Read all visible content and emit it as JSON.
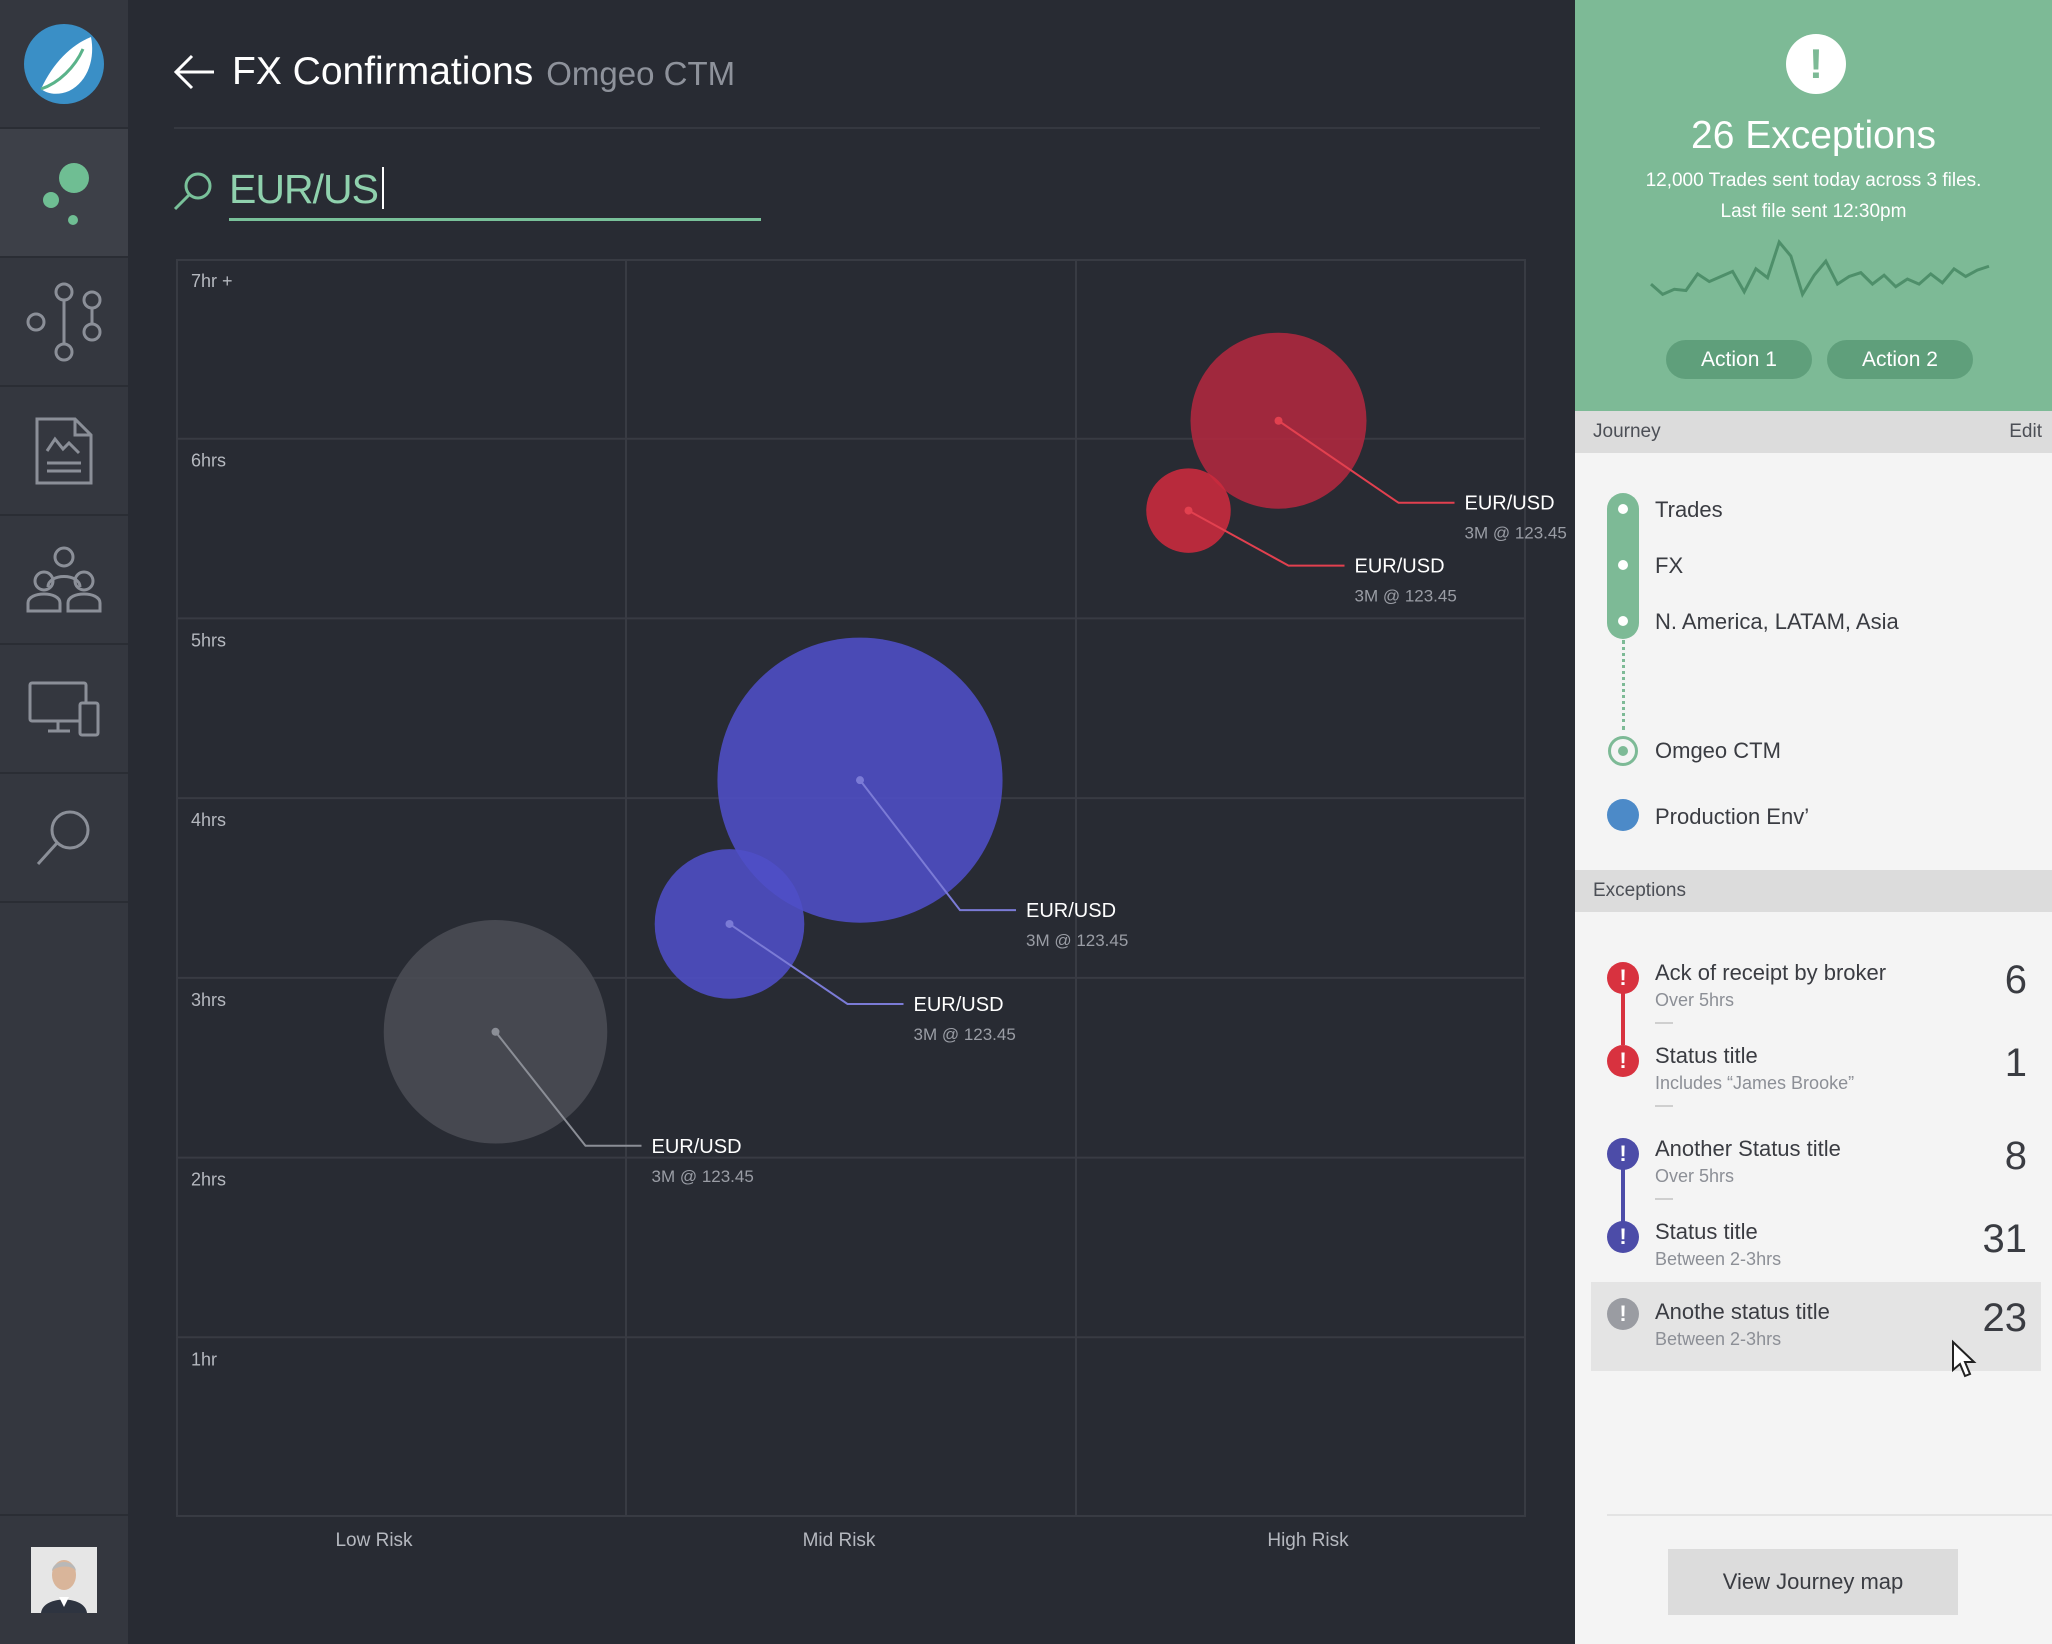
{
  "header": {
    "title": "FX Confirmations",
    "subtitle": "Omgeo CTM"
  },
  "rail": {
    "items": [
      "logo-icon",
      "bubble-chart-icon",
      "flow-icon",
      "document-icon",
      "team-icon",
      "devices-icon",
      "search-icon"
    ],
    "active": "bubble-chart-icon"
  },
  "search": {
    "value": "EUR/US"
  },
  "chart_data": {
    "type": "scatter",
    "x_categories": [
      "Low Risk",
      "Mid Risk",
      "High Risk"
    ],
    "y_ticks": [
      "7hr +",
      "6hrs",
      "5hrs",
      "4hrs",
      "3hrs",
      "2hrs",
      "1hr"
    ],
    "ylim": [
      0,
      7
    ],
    "grid": true,
    "points": [
      {
        "label": "EUR/USD",
        "detail": "3M @ 123.45",
        "x": 2.45,
        "y": 6.1,
        "size": 1.0,
        "color": "#b0283f"
      },
      {
        "label": "EUR/USD",
        "detail": "3M @ 123.45",
        "x": 2.25,
        "y": 5.6,
        "size": 0.48,
        "color": "#cc2a3e"
      },
      {
        "label": "EUR/USD",
        "detail": "3M @ 123.45",
        "x": 1.52,
        "y": 4.1,
        "size": 1.62,
        "color": "#4f4fc7"
      },
      {
        "label": "EUR/USD",
        "detail": "3M @ 123.45",
        "x": 1.23,
        "y": 3.3,
        "size": 0.85,
        "color": "#4f4fc7"
      },
      {
        "label": "EUR/USD",
        "detail": "3M @ 123.45",
        "x": 0.71,
        "y": 2.7,
        "size": 1.27,
        "color": "#4a4c54"
      }
    ]
  },
  "summary": {
    "count_label": "26 Exceptions",
    "line1": "12,000 Trades sent today across 3 files.",
    "line2": "Last file sent 12:30pm",
    "action1": "Action 1",
    "action2": "Action 2",
    "sparkline": [
      14,
      6,
      10,
      9,
      22,
      16,
      20,
      24,
      8,
      26,
      19,
      47,
      36,
      6,
      21,
      32,
      14,
      20,
      23,
      14,
      21,
      12,
      18,
      14,
      22,
      15,
      26,
      20,
      25,
      28
    ]
  },
  "journey": {
    "header": "Journey",
    "edit": "Edit",
    "steps": [
      "Trades",
      "FX",
      "N. America, LATAM, Asia"
    ],
    "endpoint": "Omgeo CTM",
    "environment": "Production Env’"
  },
  "exceptions": {
    "header": "Exceptions",
    "items": [
      {
        "title": "Ack of receipt by broker",
        "sub": "Over 5hrs",
        "count": "6",
        "color": "#d8323f"
      },
      {
        "title": "Status title",
        "sub": "Includes “James Brooke”",
        "count": "1",
        "color": "#d8323f"
      },
      {
        "title": "Another Status title",
        "sub": "Over 5hrs",
        "count": "8",
        "color": "#4c4ca8"
      },
      {
        "title": "Status title",
        "sub": "Between 2-3hrs",
        "count": "31",
        "color": "#4c4ca8"
      },
      {
        "title": "Anothe status title",
        "sub": "Between 2-3hrs",
        "count": "23",
        "color": "#9a9ca2"
      }
    ]
  },
  "footer": {
    "view_button": "View Journey map"
  }
}
